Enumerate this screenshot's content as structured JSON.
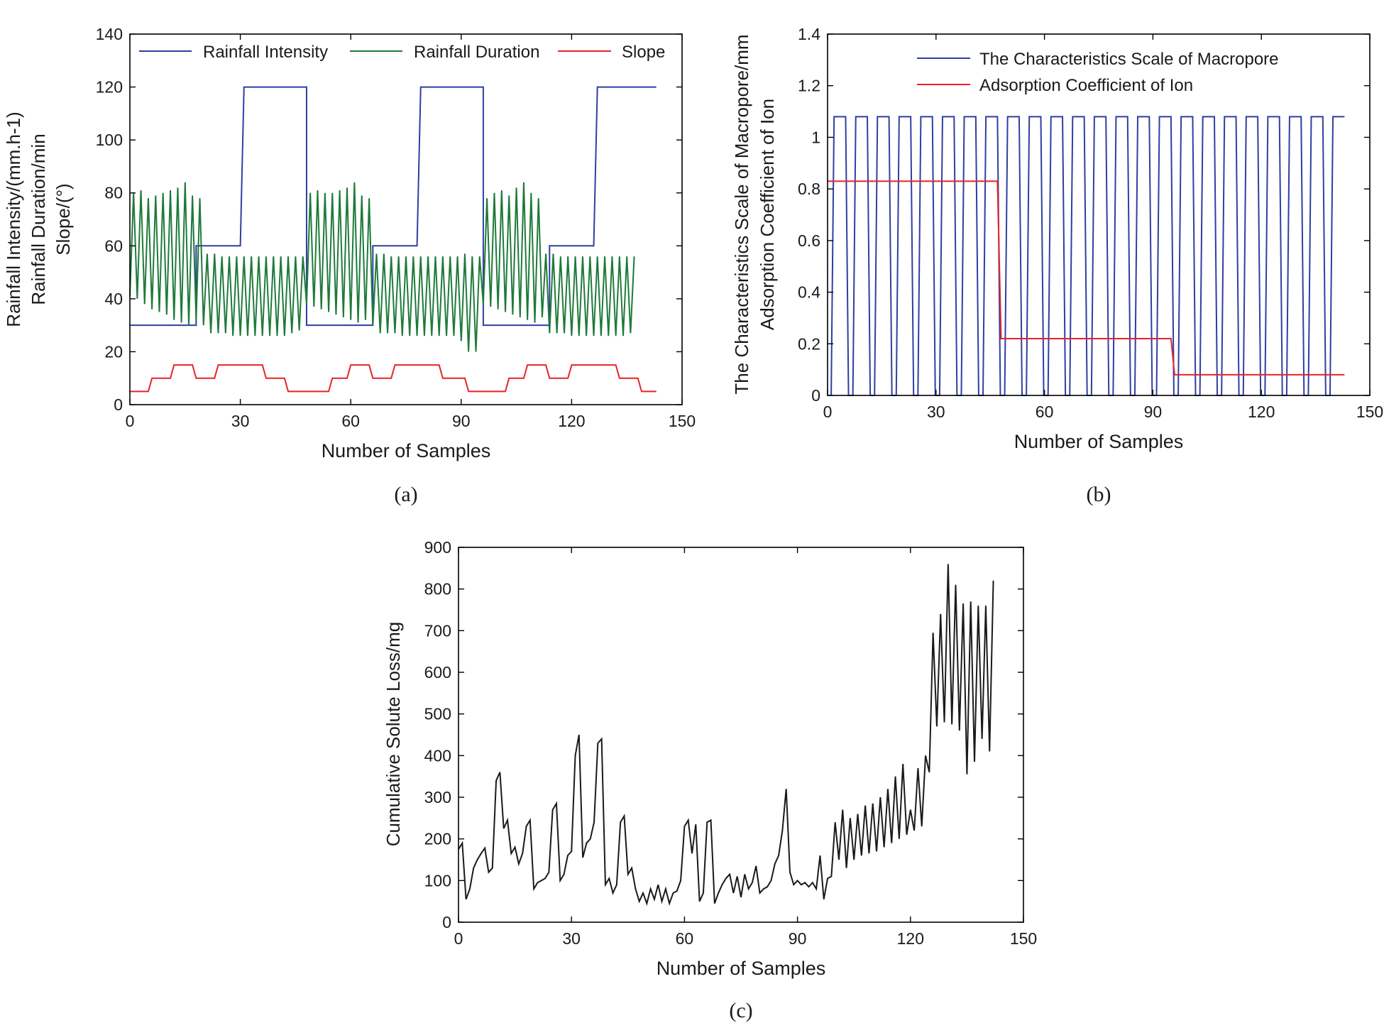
{
  "colors": {
    "blue": "#2f3fa0",
    "green": "#1e7a3a",
    "red": "#e8232a",
    "black": "#1a1a1a"
  },
  "panels": [
    {
      "caption": "(a)",
      "ylabel_lines": [
        "Rainfall Intensity/(mm.h-1)",
        "Rainfall Duration/min",
        "Slope/(°)"
      ],
      "xlabel": "Number of Samples",
      "xlim": [
        0,
        150
      ],
      "ylim": [
        0,
        140
      ],
      "xticks": [
        "0",
        "30",
        "60",
        "90",
        "120",
        "150"
      ],
      "yticks": [
        "0",
        "20",
        "40",
        "60",
        "80",
        "100",
        "120",
        "140"
      ],
      "legend": [
        "Rainfall Intensity",
        "Rainfall Duration",
        "Slope"
      ]
    },
    {
      "caption": "(b)",
      "ylabel_lines": [
        "The Characteristics Scale of Macropore/mm",
        "Adsorption Coefficient of Ion"
      ],
      "xlabel": "Number of Samples",
      "xlim": [
        0,
        150
      ],
      "ylim": [
        0,
        1.4
      ],
      "xticks": [
        "0",
        "30",
        "60",
        "90",
        "120",
        "150"
      ],
      "yticks": [
        "0",
        "0.2",
        "0.4",
        "0.6",
        "0.8",
        "1",
        "1.2",
        "1.4"
      ],
      "legend": [
        "The Characteristics Scale of Macropore",
        "Adsorption Coefficient of Ion"
      ]
    },
    {
      "caption": "(c)",
      "ylabel_lines": [
        "Cumulative Solute Loss/mg"
      ],
      "xlabel": "Number of Samples",
      "xlim": [
        0,
        150
      ],
      "ylim": [
        0,
        900
      ],
      "xticks": [
        "0",
        "30",
        "60",
        "90",
        "120",
        "150"
      ],
      "yticks": [
        "0",
        "100",
        "200",
        "300",
        "400",
        "500",
        "600",
        "700",
        "800",
        "900"
      ],
      "legend": []
    }
  ],
  "chart_data": [
    {
      "type": "line",
      "title": "(a)",
      "xlabel": "Number of Samples",
      "ylabel": "Rainfall Intensity/(mm.h-1) Rainfall Duration/min Slope/(°)",
      "xlim": [
        0,
        150
      ],
      "ylim": [
        0,
        140
      ],
      "legend_position": "top",
      "series": [
        {
          "name": "Rainfall Intensity",
          "color": "blue",
          "points": [
            [
              0,
              30
            ],
            [
              18,
              30
            ],
            [
              18,
              60
            ],
            [
              30,
              60
            ],
            [
              31,
              120
            ],
            [
              48,
              120
            ],
            [
              48,
              30
            ],
            [
              66,
              30
            ],
            [
              66,
              60
            ],
            [
              78,
              60
            ],
            [
              79,
              120
            ],
            [
              96,
              120
            ],
            [
              96,
              30
            ],
            [
              114,
              30
            ],
            [
              114,
              60
            ],
            [
              126,
              60
            ],
            [
              127,
              120
            ],
            [
              143,
              120
            ]
          ]
        },
        {
          "name": "Rainfall Duration",
          "color": "green",
          "values": [
            41,
            80,
            40,
            81,
            38,
            78,
            36,
            79,
            35,
            80,
            34,
            81,
            32,
            82,
            31,
            84,
            30,
            79,
            32,
            78,
            30,
            57,
            27,
            57,
            27,
            56,
            27,
            56,
            26,
            56,
            26,
            56,
            26,
            56,
            26,
            56,
            26,
            56,
            26,
            56,
            26,
            56,
            26,
            56,
            27,
            56,
            28,
            56,
            38,
            80,
            37,
            81,
            36,
            80,
            35,
            80,
            34,
            81,
            33,
            82,
            32,
            84,
            31,
            79,
            32,
            78,
            30,
            57,
            27,
            57,
            27,
            56,
            27,
            56,
            26,
            56,
            26,
            56,
            26,
            56,
            26,
            56,
            26,
            56,
            26,
            56,
            26,
            56,
            26,
            56,
            24,
            57,
            20,
            56,
            20,
            56,
            38,
            78,
            37,
            80,
            36,
            81,
            35,
            79,
            34,
            82,
            33,
            84,
            32,
            80,
            31,
            78,
            33,
            57,
            27,
            57,
            27,
            56,
            27,
            56,
            26,
            56,
            26,
            56,
            26,
            56,
            26,
            56,
            26,
            56,
            26,
            56,
            26,
            56,
            26,
            56,
            27,
            56
          ]
        },
        {
          "name": "Slope",
          "color": "red",
          "points": [
            [
              0,
              5
            ],
            [
              5,
              5
            ],
            [
              6,
              10
            ],
            [
              11,
              10
            ],
            [
              12,
              15
            ],
            [
              17,
              15
            ],
            [
              18,
              10
            ],
            [
              23,
              10
            ],
            [
              24,
              15
            ],
            [
              36,
              15
            ],
            [
              37,
              10
            ],
            [
              42,
              10
            ],
            [
              43,
              5
            ],
            [
              54,
              5
            ],
            [
              55,
              10
            ],
            [
              59,
              10
            ],
            [
              60,
              15
            ],
            [
              65,
              15
            ],
            [
              66,
              10
            ],
            [
              71,
              10
            ],
            [
              72,
              15
            ],
            [
              84,
              15
            ],
            [
              85,
              10
            ],
            [
              91,
              10
            ],
            [
              92,
              5
            ],
            [
              102,
              5
            ],
            [
              103,
              10
            ],
            [
              107,
              10
            ],
            [
              108,
              15
            ],
            [
              113,
              15
            ],
            [
              114,
              10
            ],
            [
              119,
              10
            ],
            [
              120,
              15
            ],
            [
              132,
              15
            ],
            [
              133,
              10
            ],
            [
              138,
              10
            ],
            [
              139,
              5
            ],
            [
              143,
              5
            ]
          ]
        }
      ]
    },
    {
      "type": "line",
      "title": "(b)",
      "xlabel": "Number of Samples",
      "ylabel": "The Characteristics Scale of Macropore/mm Adsorption Coefficient of Ion",
      "xlim": [
        0,
        150
      ],
      "ylim": [
        0,
        1.4
      ],
      "legend_position": "top-right",
      "series": [
        {
          "name": "The Characteristics Scale of Macropore",
          "color": "blue",
          "square_wave": {
            "low": 0,
            "high": 1.08,
            "period": 6,
            "rise": 0.8,
            "high_len": 3.2,
            "start": 1,
            "end": 143
          }
        },
        {
          "name": "Adsorption Coefficient of Ion",
          "color": "red",
          "points": [
            [
              0,
              0.83
            ],
            [
              47,
              0.83
            ],
            [
              48,
              0.22
            ],
            [
              95,
              0.22
            ],
            [
              96,
              0.08
            ],
            [
              143,
              0.08
            ]
          ]
        }
      ]
    },
    {
      "type": "line",
      "title": "(c)",
      "xlabel": "Number of Samples",
      "ylabel": "Cumulative Solute Loss/mg",
      "xlim": [
        0,
        150
      ],
      "ylim": [
        0,
        900
      ],
      "series": [
        {
          "name": "Cumulative Solute Loss",
          "color": "black",
          "values": [
            175,
            190,
            55,
            80,
            130,
            150,
            165,
            178,
            120,
            130,
            340,
            360,
            225,
            245,
            165,
            180,
            140,
            165,
            230,
            245,
            80,
            95,
            100,
            105,
            120,
            270,
            285,
            100,
            115,
            160,
            170,
            400,
            450,
            155,
            190,
            200,
            240,
            430,
            440,
            90,
            105,
            70,
            90,
            240,
            255,
            115,
            130,
            80,
            50,
            70,
            45,
            80,
            55,
            90,
            50,
            80,
            45,
            70,
            75,
            100,
            230,
            245,
            165,
            235,
            50,
            70,
            240,
            245,
            45,
            70,
            90,
            105,
            115,
            70,
            110,
            60,
            115,
            80,
            95,
            135,
            70,
            80,
            85,
            100,
            140,
            160,
            220,
            320,
            120,
            90,
            100,
            90,
            95,
            85,
            95,
            80,
            160,
            55,
            105,
            110,
            240,
            150,
            270,
            130,
            250,
            150,
            260,
            160,
            280,
            165,
            285,
            170,
            300,
            180,
            320,
            190,
            350,
            200,
            380,
            210,
            270,
            220,
            370,
            230,
            400,
            360,
            695,
            470,
            740,
            480,
            860,
            475,
            810,
            460,
            765,
            355,
            770,
            385,
            760,
            440,
            760,
            410,
            820
          ]
        }
      ]
    }
  ]
}
